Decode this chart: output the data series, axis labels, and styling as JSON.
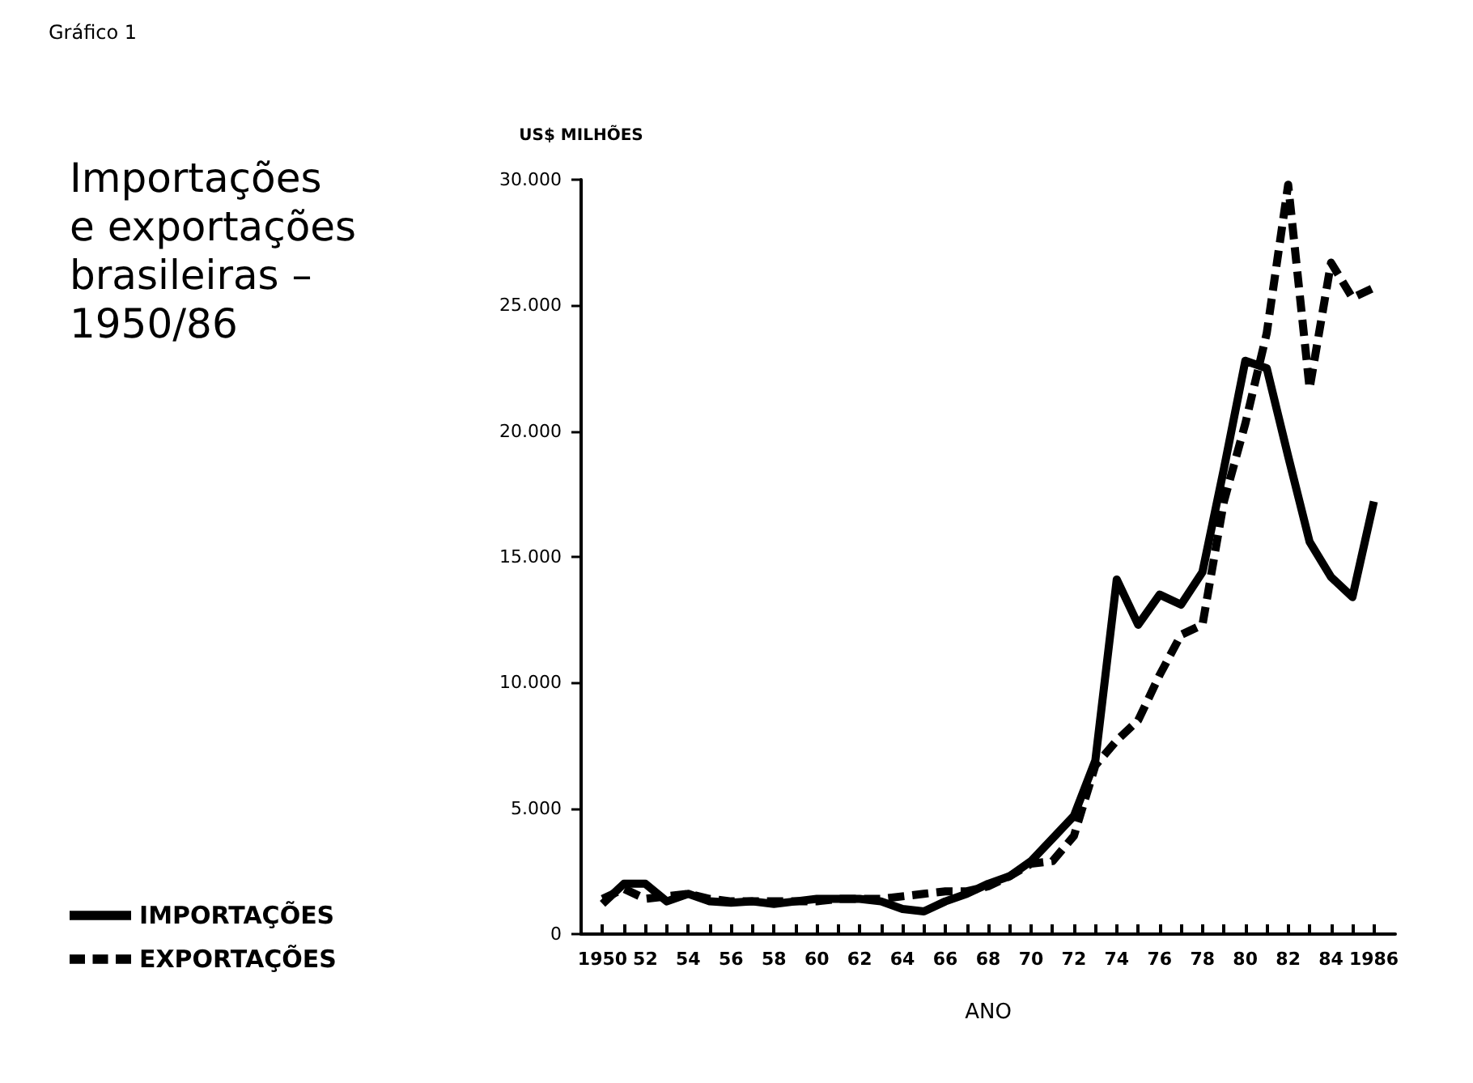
{
  "chart_data": {
    "type": "line",
    "title": "Importações\ne exportações\nbrasileiras –\n1950/86",
    "annotations": [
      "Gráfico 1"
    ],
    "xlabel": "ANO",
    "ylabel": "US$ MILHÕES",
    "x": [
      1950,
      1951,
      1952,
      1953,
      1954,
      1955,
      1956,
      1957,
      1958,
      1959,
      1960,
      1961,
      1962,
      1963,
      1964,
      1965,
      1966,
      1967,
      1968,
      1969,
      1970,
      1971,
      1972,
      1973,
      1974,
      1975,
      1976,
      1977,
      1978,
      1979,
      1980,
      1981,
      1982,
      1983,
      1984,
      1985,
      1986
    ],
    "series": [
      {
        "name": "IMPORTAÇÕES",
        "color": "#000000",
        "line_style": "solid",
        "values": [
          1200,
          2000,
          2000,
          1300,
          1600,
          1300,
          1250,
          1300,
          1200,
          1300,
          1400,
          1400,
          1400,
          1300,
          1000,
          900,
          1300,
          1600,
          2000,
          2300,
          2900,
          3800,
          4700,
          6900,
          14100,
          12300,
          13500,
          13100,
          14400,
          18500,
          22800,
          22500,
          19000,
          15600,
          14200,
          13400,
          17200
        ]
      },
      {
        "name": "EXPORTAÇÕES",
        "color": "#000000",
        "line_style": "dashed",
        "values": [
          1400,
          1800,
          1400,
          1500,
          1600,
          1400,
          1300,
          1300,
          1300,
          1300,
          1300,
          1400,
          1400,
          1400,
          1500,
          1600,
          1700,
          1700,
          1900,
          2300,
          2800,
          2900,
          3900,
          6700,
          7700,
          8500,
          10300,
          11900,
          12300,
          17200,
          20300,
          23900,
          29800,
          21700,
          26700,
          25300,
          25700
        ]
      }
    ],
    "xlim": [
      1949,
      1987
    ],
    "xticks": [
      {
        "value": 1950,
        "label": "1950"
      },
      {
        "value": 1951,
        "label": null
      },
      {
        "value": 1952,
        "label": "52"
      },
      {
        "value": 1953,
        "label": null
      },
      {
        "value": 1954,
        "label": "54"
      },
      {
        "value": 1955,
        "label": null
      },
      {
        "value": 1956,
        "label": "56"
      },
      {
        "value": 1957,
        "label": null
      },
      {
        "value": 1958,
        "label": "58"
      },
      {
        "value": 1959,
        "label": null
      },
      {
        "value": 1960,
        "label": "60"
      },
      {
        "value": 1961,
        "label": null
      },
      {
        "value": 1962,
        "label": "62"
      },
      {
        "value": 1963,
        "label": null
      },
      {
        "value": 1964,
        "label": "64"
      },
      {
        "value": 1965,
        "label": null
      },
      {
        "value": 1966,
        "label": "66"
      },
      {
        "value": 1967,
        "label": null
      },
      {
        "value": 1968,
        "label": "68"
      },
      {
        "value": 1969,
        "label": null
      },
      {
        "value": 1970,
        "label": "70"
      },
      {
        "value": 1971,
        "label": null
      },
      {
        "value": 1972,
        "label": "72"
      },
      {
        "value": 1973,
        "label": null
      },
      {
        "value": 1974,
        "label": "74"
      },
      {
        "value": 1975,
        "label": null
      },
      {
        "value": 1976,
        "label": "76"
      },
      {
        "value": 1977,
        "label": null
      },
      {
        "value": 1978,
        "label": "78"
      },
      {
        "value": 1979,
        "label": null
      },
      {
        "value": 1980,
        "label": "80"
      },
      {
        "value": 1981,
        "label": null
      },
      {
        "value": 1982,
        "label": "82"
      },
      {
        "value": 1983,
        "label": null
      },
      {
        "value": 1984,
        "label": "84"
      },
      {
        "value": 1985,
        "label": null
      },
      {
        "value": 1986,
        "label": "1986"
      }
    ],
    "ylim": [
      0,
      30000
    ],
    "yticks": [
      {
        "value": 0,
        "label": "0"
      },
      {
        "value": 5000,
        "label": "5.000"
      },
      {
        "value": 10000,
        "label": "10.000"
      },
      {
        "value": 15000,
        "label": "15.000"
      },
      {
        "value": 20000,
        "label": "20.000"
      },
      {
        "value": 25000,
        "label": "25.000"
      },
      {
        "value": 30000,
        "label": "30.000"
      }
    ],
    "grid": false,
    "legend": "bottom left",
    "marker": "none"
  }
}
